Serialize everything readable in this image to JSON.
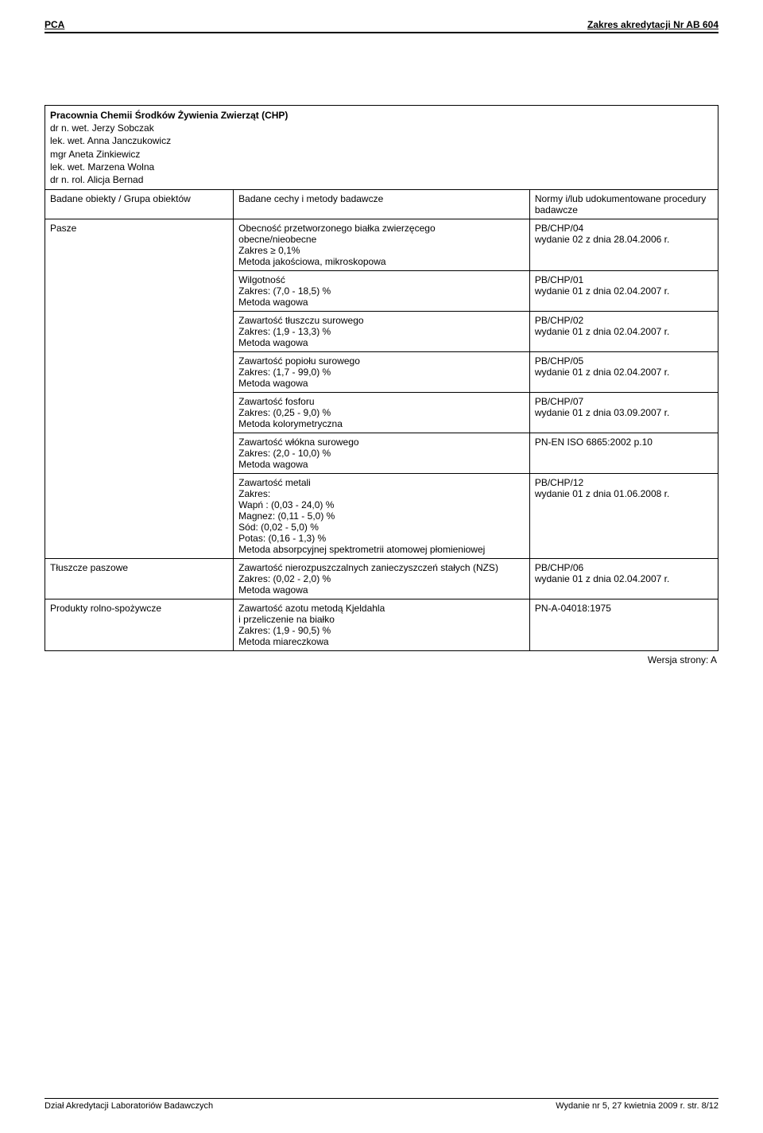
{
  "header": {
    "left": "PCA",
    "right": "Zakres akredytacji Nr AB 604"
  },
  "lab": {
    "name": "Pracownia Chemii Środków Żywienia Zwierząt (CHP)",
    "lines": [
      "dr n. wet. Jerzy Sobczak",
      "lek. wet. Anna Janczukowicz",
      "mgr Aneta Zinkiewicz",
      "lek. wet. Marzena Wolna",
      "dr n. rol. Alicja Bernad"
    ]
  },
  "columns": {
    "c1": "Badane obiekty / Grupa obiektów",
    "c2": "Badane cechy i metody badawcze",
    "c3": "Normy i/lub udokumentowane procedury badawcze"
  },
  "rows": [
    {
      "subject": "Pasze",
      "methods": [
        {
          "text": "Obecność przetworzonego białka zwierzęcego\nobecne/nieobecne\nZakres ≥ 0,1%\nMetoda jakościowa, mikroskopowa",
          "norm": "PB/CHP/04\nwydanie 02 z dnia 28.04.2006 r."
        },
        {
          "text": "Wilgotność\nZakres: (7,0 - 18,5) %\nMetoda wagowa",
          "norm": "PB/CHP/01\nwydanie 01 z dnia 02.04.2007 r."
        },
        {
          "text": "Zawartość tłuszczu surowego\nZakres: (1,9 - 13,3) %\nMetoda wagowa",
          "norm": "PB/CHP/02\nwydanie 01 z dnia 02.04.2007 r."
        },
        {
          "text": "Zawartość popiołu surowego\nZakres: (1,7 - 99,0) %\nMetoda wagowa",
          "norm": "PB/CHP/05\nwydanie 01 z dnia 02.04.2007 r."
        },
        {
          "text": "Zawartość fosforu\nZakres: (0,25 - 9,0) %\nMetoda kolorymetryczna",
          "norm": "PB/CHP/07\nwydanie 01 z dnia 03.09.2007 r."
        },
        {
          "text": "Zawartość włókna surowego\nZakres: (2,0 - 10,0) %\nMetoda wagowa",
          "norm": "PN-EN ISO 6865:2002 p.10"
        },
        {
          "text": "Zawartość metali\nZakres:\nWapń :   (0,03 - 24,0) %\nMagnez: (0,11 - 5,0) %\nSód:       (0,02 - 5,0) %\nPotas:    (0,16 - 1,3) %\nMetoda absorpcyjnej  spektrometrii atomowej płomieniowej",
          "norm": "PB/CHP/12\nwydanie 01 z dnia 01.06.2008 r."
        }
      ]
    },
    {
      "subject": "Tłuszcze paszowe",
      "methods": [
        {
          "text": "Zawartość nierozpuszczalnych zanieczyszczeń stałych (NZS)\nZakres: (0,02 - 2,0) %\nMetoda wagowa",
          "norm": "PB/CHP/06\nwydanie 01 z dnia 02.04.2007 r."
        }
      ]
    },
    {
      "subject": "Produkty rolno-spożywcze",
      "methods": [
        {
          "text": "Zawartość azotu metodą Kjeldahla\ni przeliczenie na białko\nZakres: (1,9 - 90,5) %\nMetoda miareczkowa",
          "norm": "PN-A-04018:1975"
        }
      ]
    }
  ],
  "version": "Wersja strony: A",
  "footer": {
    "left": "Dział Akredytacji Laboratoriów Badawczych",
    "right": "Wydanie nr 5, 27 kwietnia 2009 r.    str. 8/12"
  }
}
